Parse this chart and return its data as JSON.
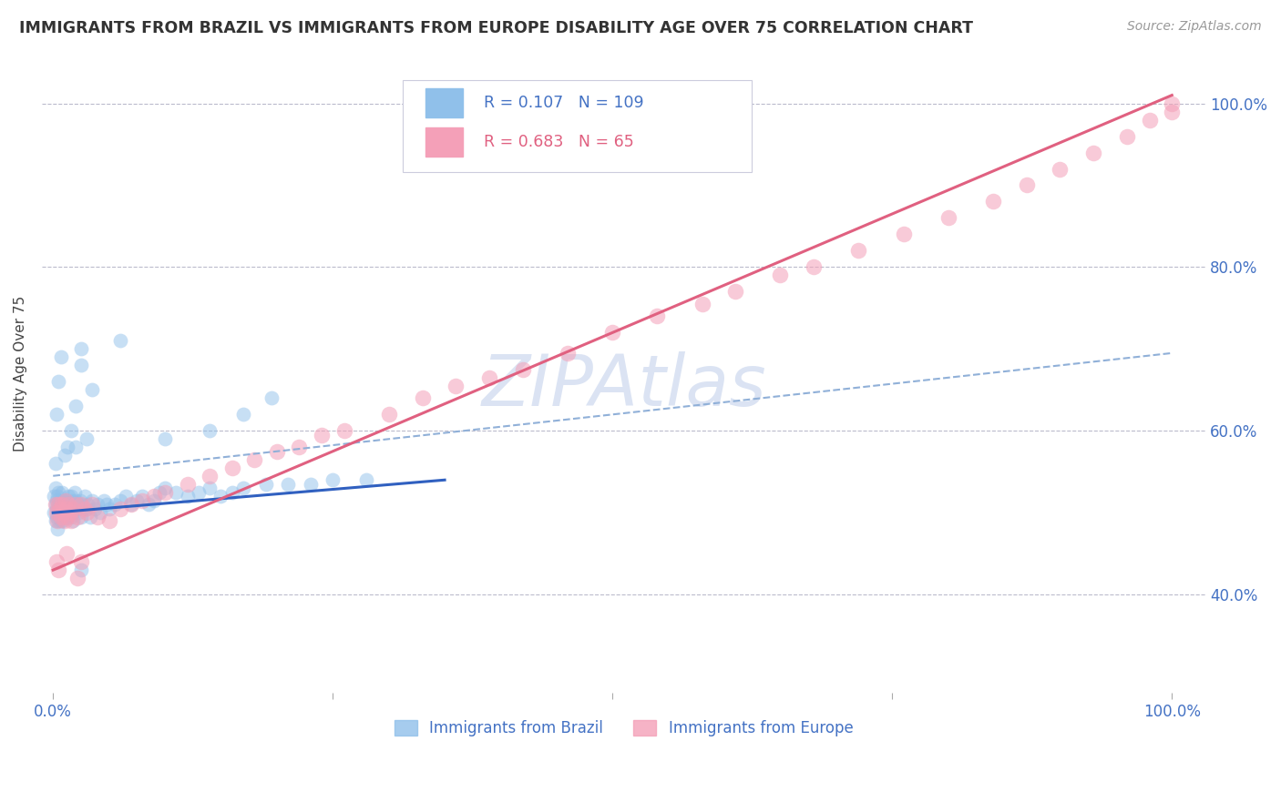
{
  "title": "IMMIGRANTS FROM BRAZIL VS IMMIGRANTS FROM EUROPE DISABILITY AGE OVER 75 CORRELATION CHART",
  "source": "Source: ZipAtlas.com",
  "ylabel": "Disability Age Over 75",
  "yticks": [
    0.4,
    0.6,
    0.8,
    1.0
  ],
  "ytick_labels": [
    "40.0%",
    "60.0%",
    "80.0%",
    "100.0%"
  ],
  "xlim": [
    -0.01,
    1.03
  ],
  "ylim": [
    0.28,
    1.06
  ],
  "brazil_color": "#90C0EA",
  "europe_color": "#F4A0B8",
  "brazil_R": 0.107,
  "brazil_N": 109,
  "europe_R": 0.683,
  "europe_N": 65,
  "legend_brazil": "Immigrants from Brazil",
  "legend_europe": "Immigrants from Europe",
  "watermark": "ZIPAtlas",
  "watermark_color": "#ccd8ee",
  "brazil_line_color": "#3060C0",
  "europe_line_color": "#E06080",
  "dashed_line_color": "#90B0D8",
  "title_color": "#333333",
  "axis_label_color": "#4472C4",
  "brazil_line": {
    "x0": 0.0,
    "x1": 0.35,
    "y0": 0.5,
    "y1": 0.54
  },
  "europe_line": {
    "x0": 0.0,
    "x1": 1.0,
    "y0": 0.43,
    "y1": 1.01
  },
  "dashed_line": {
    "x0": 0.0,
    "x1": 1.0,
    "y0": 0.545,
    "y1": 0.695
  },
  "brazil_scatter_x": [
    0.001,
    0.001,
    0.002,
    0.002,
    0.002,
    0.003,
    0.003,
    0.003,
    0.004,
    0.004,
    0.004,
    0.005,
    0.005,
    0.005,
    0.005,
    0.006,
    0.006,
    0.006,
    0.007,
    0.007,
    0.007,
    0.008,
    0.008,
    0.008,
    0.009,
    0.009,
    0.009,
    0.01,
    0.01,
    0.01,
    0.011,
    0.011,
    0.012,
    0.012,
    0.013,
    0.013,
    0.014,
    0.014,
    0.015,
    0.015,
    0.016,
    0.016,
    0.017,
    0.017,
    0.018,
    0.018,
    0.019,
    0.019,
    0.02,
    0.02,
    0.021,
    0.022,
    0.023,
    0.024,
    0.025,
    0.025,
    0.027,
    0.028,
    0.03,
    0.031,
    0.033,
    0.035,
    0.037,
    0.04,
    0.042,
    0.045,
    0.048,
    0.05,
    0.055,
    0.06,
    0.065,
    0.07,
    0.075,
    0.08,
    0.085,
    0.09,
    0.095,
    0.1,
    0.11,
    0.12,
    0.13,
    0.14,
    0.15,
    0.16,
    0.17,
    0.19,
    0.21,
    0.23,
    0.25,
    0.28,
    0.002,
    0.003,
    0.005,
    0.007,
    0.01,
    0.013,
    0.016,
    0.02,
    0.02,
    0.025,
    0.025,
    0.03,
    0.035,
    0.06,
    0.1,
    0.14,
    0.17,
    0.195,
    0.025
  ],
  "brazil_scatter_y": [
    0.52,
    0.5,
    0.51,
    0.49,
    0.53,
    0.505,
    0.515,
    0.495,
    0.5,
    0.52,
    0.48,
    0.51,
    0.5,
    0.49,
    0.525,
    0.505,
    0.515,
    0.495,
    0.51,
    0.5,
    0.49,
    0.515,
    0.505,
    0.525,
    0.5,
    0.49,
    0.51,
    0.505,
    0.515,
    0.495,
    0.51,
    0.5,
    0.505,
    0.515,
    0.51,
    0.495,
    0.505,
    0.52,
    0.5,
    0.51,
    0.495,
    0.52,
    0.505,
    0.515,
    0.5,
    0.49,
    0.51,
    0.525,
    0.505,
    0.515,
    0.51,
    0.505,
    0.5,
    0.515,
    0.51,
    0.495,
    0.505,
    0.52,
    0.505,
    0.51,
    0.495,
    0.515,
    0.505,
    0.51,
    0.5,
    0.515,
    0.51,
    0.505,
    0.51,
    0.515,
    0.52,
    0.51,
    0.515,
    0.52,
    0.51,
    0.515,
    0.525,
    0.53,
    0.525,
    0.52,
    0.525,
    0.53,
    0.52,
    0.525,
    0.53,
    0.535,
    0.535,
    0.535,
    0.54,
    0.54,
    0.56,
    0.62,
    0.66,
    0.69,
    0.57,
    0.58,
    0.6,
    0.63,
    0.58,
    0.68,
    0.7,
    0.59,
    0.65,
    0.71,
    0.59,
    0.6,
    0.62,
    0.64,
    0.43
  ],
  "europe_scatter_x": [
    0.002,
    0.003,
    0.004,
    0.005,
    0.006,
    0.007,
    0.008,
    0.009,
    0.01,
    0.011,
    0.012,
    0.013,
    0.014,
    0.015,
    0.016,
    0.018,
    0.02,
    0.022,
    0.025,
    0.028,
    0.03,
    0.035,
    0.04,
    0.05,
    0.06,
    0.07,
    0.08,
    0.09,
    0.1,
    0.12,
    0.14,
    0.16,
    0.18,
    0.2,
    0.22,
    0.24,
    0.26,
    0.3,
    0.33,
    0.36,
    0.39,
    0.42,
    0.46,
    0.5,
    0.54,
    0.58,
    0.61,
    0.65,
    0.68,
    0.72,
    0.76,
    0.8,
    0.84,
    0.87,
    0.9,
    0.93,
    0.96,
    0.98,
    1.0,
    1.0,
    0.003,
    0.005,
    0.012,
    0.022,
    0.025
  ],
  "europe_scatter_y": [
    0.51,
    0.5,
    0.49,
    0.51,
    0.505,
    0.495,
    0.51,
    0.5,
    0.49,
    0.515,
    0.505,
    0.495,
    0.51,
    0.5,
    0.49,
    0.505,
    0.51,
    0.495,
    0.51,
    0.505,
    0.5,
    0.51,
    0.495,
    0.49,
    0.505,
    0.51,
    0.515,
    0.52,
    0.525,
    0.535,
    0.545,
    0.555,
    0.565,
    0.575,
    0.58,
    0.595,
    0.6,
    0.62,
    0.64,
    0.655,
    0.665,
    0.675,
    0.695,
    0.72,
    0.74,
    0.755,
    0.77,
    0.79,
    0.8,
    0.82,
    0.84,
    0.86,
    0.88,
    0.9,
    0.92,
    0.94,
    0.96,
    0.98,
    1.0,
    0.99,
    0.44,
    0.43,
    0.45,
    0.42,
    0.44
  ]
}
